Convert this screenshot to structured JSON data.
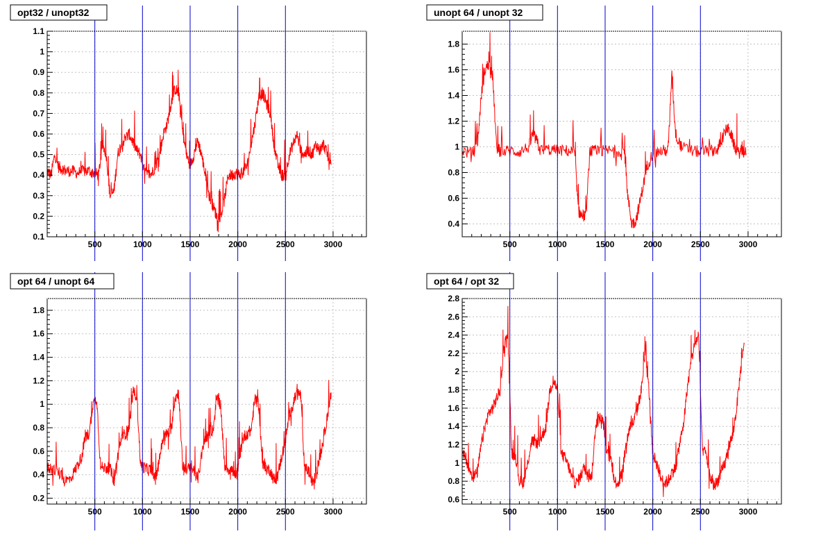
{
  "colors": {
    "data": "#ff0000",
    "marker": "#0000cc",
    "grid": "#c0c0c0",
    "frame": "#000000"
  },
  "chart_data": [
    {
      "type": "line",
      "title": "opt32 / unopt32",
      "xlim": [
        0,
        3350
      ],
      "ylim": [
        0.1,
        1.1
      ],
      "xticks": [
        500,
        1000,
        1500,
        2000,
        2500,
        3000
      ],
      "yticks": [
        0.1,
        0.2,
        0.3,
        0.4,
        0.5,
        0.6,
        0.7,
        0.8,
        0.9,
        1,
        1.1
      ],
      "ytick_labels": [
        "0.1",
        "0.2",
        "0.3",
        "0.4",
        "0.5",
        "0.6",
        "0.7",
        "0.8",
        "0.9",
        "1",
        "1.1"
      ],
      "vlines": [
        500,
        1000,
        1500,
        2000,
        2500
      ],
      "grid": true,
      "series": [
        {
          "x": [
            0,
            40,
            80,
            120,
            160,
            200,
            260,
            320,
            380,
            440,
            500,
            540,
            580,
            620,
            660,
            700,
            740,
            780,
            820,
            860,
            900,
            940,
            980,
            1020,
            1060,
            1100,
            1140,
            1180,
            1220,
            1260,
            1300,
            1340,
            1380,
            1420,
            1460,
            1500,
            1540,
            1580,
            1620,
            1660,
            1700,
            1740,
            1780,
            1820,
            1860,
            1900,
            1940,
            1980,
            2020,
            2060,
            2100,
            2140,
            2180,
            2220,
            2260,
            2300,
            2340,
            2380,
            2420,
            2460,
            2500,
            2540,
            2580,
            2620,
            2660,
            2700,
            2740,
            2780,
            2820,
            2860,
            2900,
            2940,
            2980
          ],
          "y": [
            0.42,
            0.4,
            0.5,
            0.44,
            0.43,
            0.42,
            0.42,
            0.41,
            0.42,
            0.42,
            0.41,
            0.4,
            0.55,
            0.5,
            0.3,
            0.32,
            0.5,
            0.55,
            0.58,
            0.6,
            0.56,
            0.52,
            0.5,
            0.42,
            0.4,
            0.41,
            0.45,
            0.5,
            0.6,
            0.65,
            0.75,
            0.82,
            0.8,
            0.62,
            0.5,
            0.45,
            0.5,
            0.57,
            0.5,
            0.4,
            0.3,
            0.25,
            0.2,
            0.2,
            0.28,
            0.4,
            0.4,
            0.41,
            0.4,
            0.42,
            0.45,
            0.55,
            0.65,
            0.78,
            0.8,
            0.75,
            0.7,
            0.55,
            0.45,
            0.4,
            0.4,
            0.5,
            0.55,
            0.6,
            0.52,
            0.5,
            0.52,
            0.5,
            0.55,
            0.52,
            0.55,
            0.5,
            0.45
          ]
        }
      ]
    },
    {
      "type": "line",
      "title": "unopt 64 / unopt 32",
      "xlim": [
        0,
        3350
      ],
      "ylim": [
        0.3,
        1.9
      ],
      "xticks": [
        500,
        1000,
        1500,
        2000,
        2500,
        3000
      ],
      "yticks": [
        0.4,
        0.6,
        0.8,
        1,
        1.2,
        1.4,
        1.6,
        1.8
      ],
      "ytick_labels": [
        "0.4",
        "0.6",
        "0.8",
        "1",
        "1.2",
        "1.4",
        "1.6",
        "1.8"
      ],
      "vlines": [
        500,
        1000,
        1500,
        2000,
        2500
      ],
      "grid": true,
      "series": [
        {
          "x": [
            0,
            100,
            160,
            200,
            240,
            280,
            320,
            360,
            400,
            500,
            600,
            700,
            740,
            780,
            820,
            900,
            1000,
            1100,
            1180,
            1220,
            1260,
            1300,
            1340,
            1400,
            1500,
            1600,
            1700,
            1740,
            1780,
            1820,
            1860,
            1900,
            1940,
            2000,
            2100,
            2160,
            2200,
            2240,
            2300,
            2400,
            2500,
            2600,
            2680,
            2720,
            2780,
            2820,
            2860,
            2900,
            2940,
            2980
          ],
          "y": [
            0.97,
            0.95,
            1.0,
            1.4,
            1.6,
            1.65,
            1.55,
            1.0,
            0.96,
            0.97,
            0.96,
            1.0,
            1.1,
            1.05,
            0.97,
            0.98,
            0.97,
            0.97,
            0.96,
            0.5,
            0.46,
            0.47,
            0.97,
            0.96,
            0.97,
            0.97,
            0.97,
            0.6,
            0.4,
            0.42,
            0.55,
            0.7,
            0.85,
            0.95,
            0.97,
            0.97,
            1.55,
            1.1,
            1.0,
            0.97,
            0.96,
            0.97,
            0.98,
            1.05,
            1.15,
            1.1,
            1.0,
            0.95,
            0.97,
            0.95
          ]
        }
      ]
    },
    {
      "type": "line",
      "title": "opt 64 / unopt 64",
      "xlim": [
        0,
        3350
      ],
      "ylim": [
        0.15,
        1.9
      ],
      "xticks": [
        500,
        1000,
        1500,
        2000,
        2500,
        3000
      ],
      "yticks": [
        0.2,
        0.4,
        0.6,
        0.8,
        1,
        1.2,
        1.4,
        1.6,
        1.8
      ],
      "ytick_labels": [
        "0.2",
        "0.4",
        "0.6",
        "0.8",
        "1",
        "1.2",
        "1.4",
        "1.6",
        "1.8"
      ],
      "vlines": [
        500,
        1000,
        1500,
        2000,
        2500
      ],
      "grid": true,
      "series": [
        {
          "x": [
            0,
            60,
            120,
            180,
            240,
            300,
            360,
            400,
            440,
            480,
            520,
            560,
            620,
            660,
            700,
            740,
            780,
            820,
            860,
            900,
            940,
            980,
            1020,
            1060,
            1100,
            1140,
            1180,
            1220,
            1260,
            1300,
            1340,
            1380,
            1420,
            1460,
            1500,
            1540,
            1580,
            1620,
            1660,
            1700,
            1740,
            1780,
            1820,
            1860,
            1900,
            1940,
            1980,
            2020,
            2060,
            2100,
            2140,
            2180,
            2220,
            2260,
            2300,
            2340,
            2380,
            2420,
            2460,
            2500,
            2540,
            2580,
            2620,
            2660,
            2700,
            2740,
            2780,
            2820,
            2860,
            2900,
            2940,
            2980
          ],
          "y": [
            0.46,
            0.45,
            0.42,
            0.35,
            0.36,
            0.45,
            0.55,
            0.72,
            0.75,
            1.0,
            1.05,
            0.46,
            0.46,
            0.45,
            0.35,
            0.55,
            0.72,
            0.75,
            0.8,
            1.1,
            1.08,
            0.48,
            0.46,
            0.44,
            0.45,
            0.35,
            0.55,
            0.72,
            0.75,
            0.78,
            1.05,
            1.1,
            0.48,
            0.45,
            0.45,
            0.44,
            0.36,
            0.56,
            0.72,
            0.75,
            0.78,
            1.05,
            1.0,
            0.48,
            0.45,
            0.44,
            0.36,
            0.56,
            0.72,
            0.75,
            0.78,
            1.05,
            1.0,
            0.48,
            0.45,
            0.44,
            0.35,
            0.4,
            0.55,
            0.7,
            0.9,
            1.0,
            1.1,
            1.08,
            0.45,
            0.44,
            0.34,
            0.38,
            0.55,
            0.7,
            0.9,
            1.1
          ]
        }
      ]
    },
    {
      "type": "line",
      "title": "opt 64 / opt 32",
      "xlim": [
        0,
        3350
      ],
      "ylim": [
        0.55,
        2.8
      ],
      "xticks": [
        500,
        1000,
        1500,
        2000,
        2500,
        3000
      ],
      "yticks": [
        0.6,
        0.8,
        1,
        1.2,
        1.4,
        1.6,
        1.8,
        2,
        2.2,
        2.4,
        2.6,
        2.8
      ],
      "ytick_labels": [
        "0.6",
        "0.8",
        "1",
        "1.2",
        "1.4",
        "1.6",
        "1.8",
        "2",
        "2.2",
        "2.4",
        "2.6",
        "2.8"
      ],
      "vlines": [
        500,
        1000,
        1500,
        2000,
        2500
      ],
      "grid": true,
      "series": [
        {
          "x": [
            0,
            40,
            80,
            120,
            160,
            200,
            240,
            280,
            320,
            360,
            400,
            440,
            480,
            520,
            560,
            600,
            640,
            680,
            720,
            760,
            800,
            840,
            880,
            920,
            960,
            1000,
            1040,
            1080,
            1120,
            1160,
            1200,
            1240,
            1280,
            1320,
            1360,
            1400,
            1440,
            1480,
            1520,
            1560,
            1600,
            1640,
            1680,
            1720,
            1760,
            1800,
            1840,
            1880,
            1920,
            1960,
            2000,
            2040,
            2080,
            2120,
            2160,
            2200,
            2240,
            2280,
            2320,
            2360,
            2400,
            2440,
            2480,
            2520,
            2560,
            2600,
            2640,
            2680,
            2720,
            2760,
            2800,
            2840,
            2880,
            2920,
            2960
          ],
          "y": [
            1.1,
            1.05,
            0.9,
            0.85,
            0.9,
            1.2,
            1.4,
            1.55,
            1.6,
            1.7,
            1.8,
            2.3,
            2.4,
            1.1,
            1.08,
            0.8,
            0.78,
            0.95,
            1.2,
            1.25,
            1.2,
            1.3,
            1.4,
            1.8,
            1.9,
            1.8,
            1.1,
            1.05,
            0.95,
            0.8,
            0.78,
            0.85,
            0.95,
            0.9,
            0.85,
            1.4,
            1.5,
            1.45,
            1.1,
            1.05,
            0.8,
            0.78,
            0.9,
            1.2,
            1.4,
            1.45,
            1.6,
            1.8,
            2.2,
            1.8,
            1.1,
            1.0,
            0.85,
            0.78,
            0.8,
            0.9,
            0.95,
            1.2,
            1.4,
            1.8,
            2.1,
            2.3,
            2.4,
            1.15,
            1.1,
            0.85,
            0.75,
            0.8,
            0.9,
            1.0,
            1.2,
            1.3,
            1.6,
            2.0,
            2.3
          ]
        }
      ]
    }
  ]
}
